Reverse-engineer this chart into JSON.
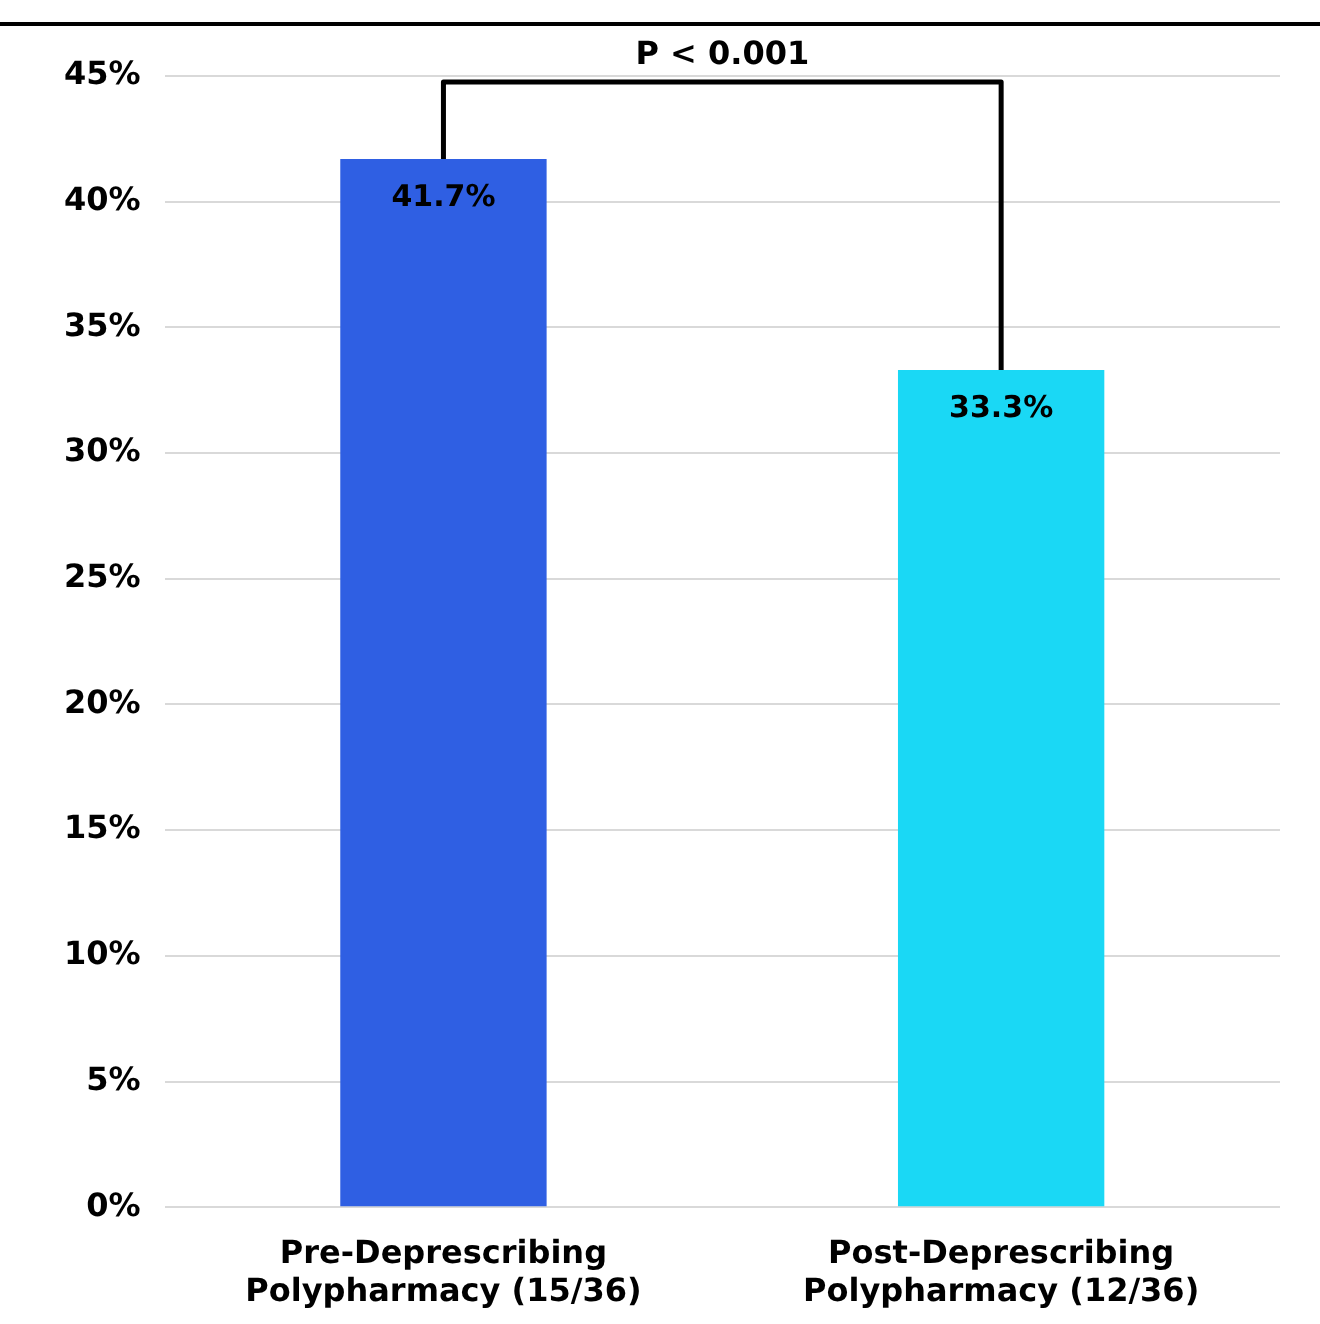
{
  "chart_data": {
    "type": "bar",
    "categories": [
      "Pre-Deprescribing Polypharmacy (15/36)",
      "Post-Deprescribing Polypharmacy (12/36)"
    ],
    "values": [
      41.7,
      33.3
    ],
    "colors": [
      "#2f5fe3",
      "#1ad8f5"
    ],
    "value_labels": [
      "41.7%",
      "33.3%"
    ],
    "ylim": [
      0,
      45
    ],
    "yticks": [
      {
        "value": 0,
        "label": "0%"
      },
      {
        "value": 5,
        "label": "5%"
      },
      {
        "value": 10,
        "label": "10%"
      },
      {
        "value": 15,
        "label": "15%"
      },
      {
        "value": 20,
        "label": "20%"
      },
      {
        "value": 25,
        "label": "25%"
      },
      {
        "value": 30,
        "label": "30%"
      },
      {
        "value": 35,
        "label": "35%"
      },
      {
        "value": 40,
        "label": "40%"
      },
      {
        "value": 45,
        "label": "45%"
      }
    ],
    "grid": "y",
    "annotations": [
      "P < 0.001"
    ]
  }
}
